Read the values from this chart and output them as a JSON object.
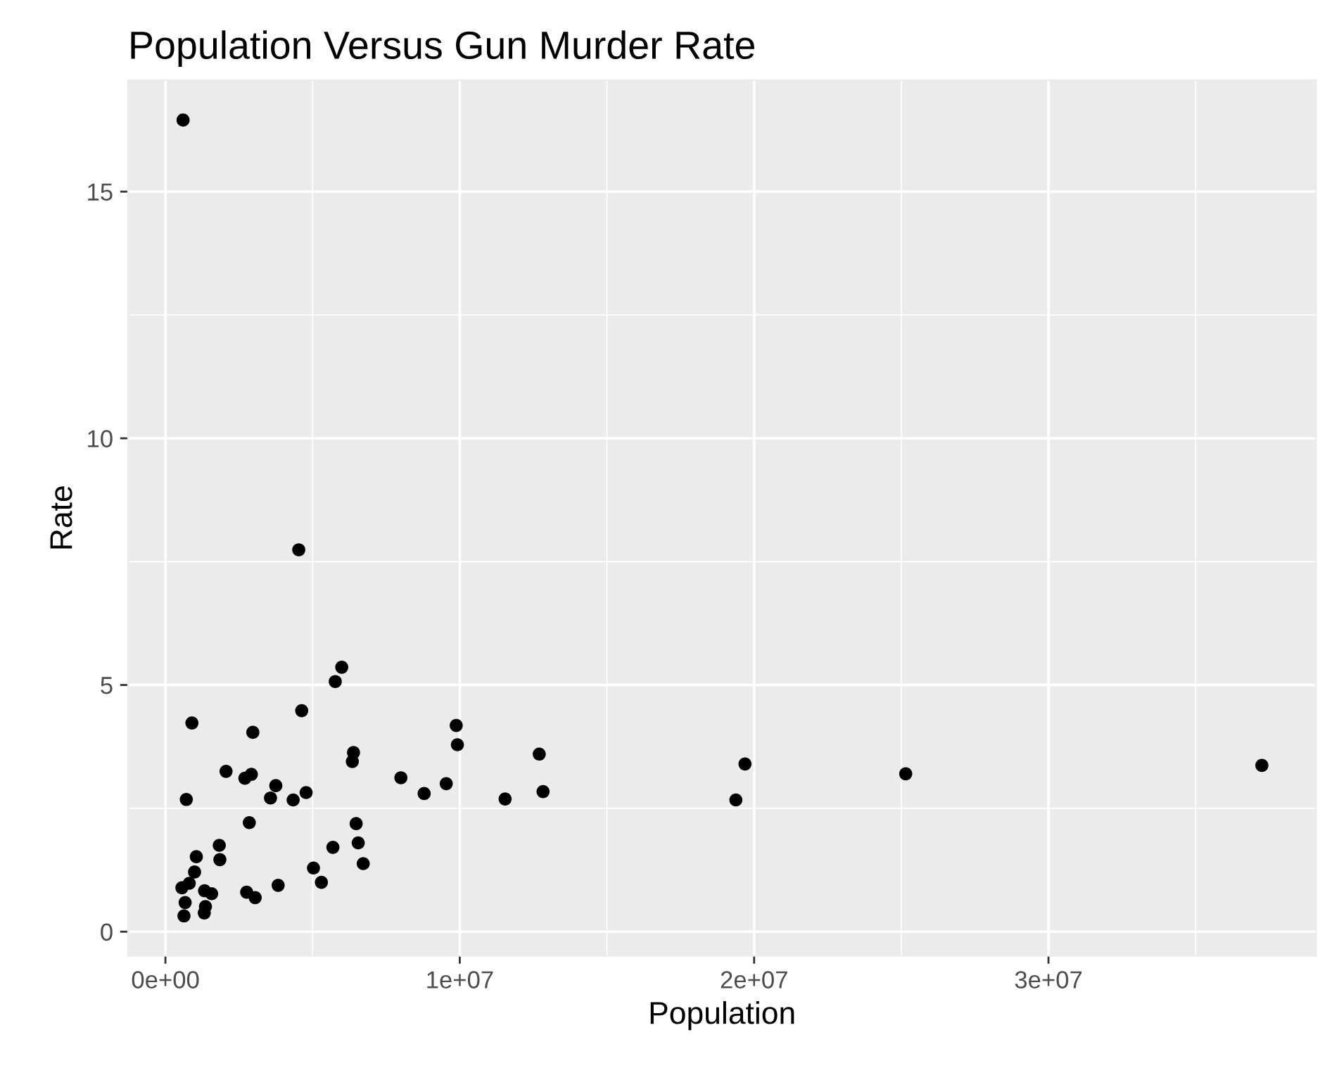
{
  "chart_data": {
    "type": "scatter",
    "title": "Population Versus Gun Murder Rate",
    "xlabel": "Population",
    "ylabel": "Rate",
    "x": [
      4780000,
      710000,
      6390000,
      2920000,
      37250000,
      5030000,
      3570000,
      900000,
      600000,
      19690000,
      9920000,
      1360000,
      1570000,
      12830000,
      6480000,
      3050000,
      2850000,
      4340000,
      4530000,
      1330000,
      5770000,
      6550000,
      9880000,
      5300000,
      2970000,
      5990000,
      990000,
      1830000,
      2700000,
      1320000,
      8790000,
      2060000,
      19380000,
      9540000,
      670000,
      11540000,
      3750000,
      3830000,
      12700000,
      1050000,
      4630000,
      810000,
      6350000,
      25150000,
      2760000,
      630000,
      8000000,
      6720000,
      1850000,
      5690000,
      560000
    ],
    "values": [
      2.82,
      2.68,
      3.63,
      3.19,
      3.37,
      1.29,
      2.71,
      4.23,
      16.45,
      3.4,
      3.79,
      0.51,
      0.77,
      2.84,
      2.19,
      0.69,
      2.21,
      2.67,
      7.74,
      0.83,
      5.07,
      1.8,
      4.18,
      1.0,
      4.04,
      5.36,
      1.21,
      1.75,
      3.11,
      0.38,
      2.8,
      3.25,
      2.67,
      3.0,
      0.59,
      2.69,
      2.96,
      0.94,
      3.6,
      1.52,
      4.48,
      0.98,
      3.45,
      3.2,
      0.8,
      0.32,
      3.12,
      1.38,
      1.46,
      1.71,
      0.89
    ],
    "color": "#000000",
    "marker": "circle",
    "grid": true,
    "xlim": [
      -1270000,
      39090000
    ],
    "xticks": [
      {
        "value": 0,
        "label": "0e+00"
      },
      {
        "value": 10000000,
        "label": "1e+07"
      },
      {
        "value": 20000000,
        "label": "2e+07"
      },
      {
        "value": 30000000,
        "label": "3e+07"
      }
    ],
    "ylim": [
      -0.49,
      17.26
    ],
    "yticks": [
      0,
      5,
      10,
      15
    ]
  }
}
